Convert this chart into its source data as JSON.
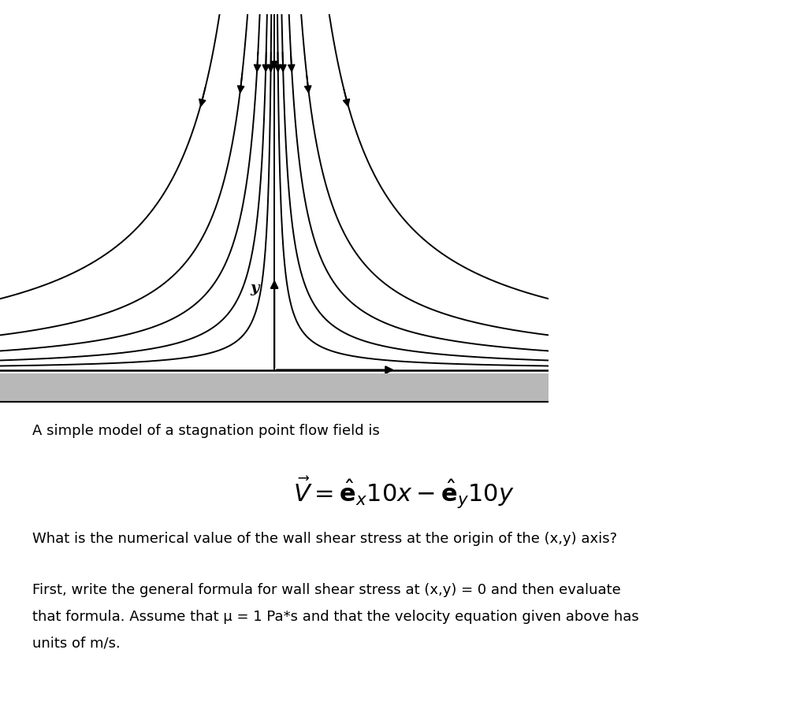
{
  "background_color": "#ffffff",
  "streamline_color": "#000000",
  "wall_color": "#b8b8b8",
  "wall_edge_color": "#000000",
  "axis_color": "#000000",
  "arrow_color": "#000000",
  "text_color": "#000000",
  "fig_width": 10.24,
  "fig_height": 9.19,
  "text_intro": "A simple model of a stagnation point flow field is",
  "text_question": "What is the numerical value of the wall shear stress at the origin of the (x,y) axis?",
  "text_body1": "First, write the general formula for wall shear stress at (x,y) = 0 and then evaluate",
  "text_body2": "that formula. Assume that μ = 1 Pa*s and that the velocity equation given above has",
  "text_body3": "units of m/s.",
  "streamline_constants": [
    0.0,
    0.25,
    0.6,
    1.2,
    2.2,
    4.5,
    -0.25,
    -0.6,
    -1.2,
    -2.2,
    -4.5
  ],
  "xlim": [
    -4.5,
    4.5
  ],
  "ylim": [
    -0.5,
    5.0
  ]
}
